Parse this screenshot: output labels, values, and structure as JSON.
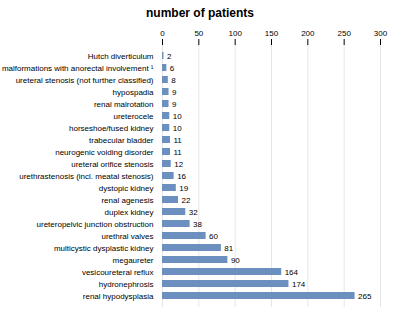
{
  "chart_data": {
    "type": "bar",
    "orientation": "horizontal",
    "title": "number of patients",
    "categories": [
      "Hutch diverticulum",
      "malformations with anorectal involvement ¹",
      "ureteral stenosis (not further classified)",
      "hypospadia",
      "renal malrotation",
      "ureterocele",
      "horseshoe/fused kidney",
      "trabecular bladder",
      "neurogenic voiding disorder",
      "ureteral orifice stenosis",
      "urethrastenosis (incl. meatal stenosis)",
      "dystopic kidney",
      "renal agenesis",
      "duplex kidney",
      "ureteropelvic junction obstruction",
      "urethral valves",
      "multicystic dysplastic kidney",
      "megaureter",
      "vesicoureteral reflux",
      "hydronephrosis",
      "renal hypodysplasia"
    ],
    "values": [
      2,
      6,
      8,
      9,
      9,
      10,
      10,
      11,
      11,
      12,
      16,
      19,
      22,
      32,
      38,
      60,
      81,
      90,
      164,
      174,
      265
    ],
    "color": "#6b8fbf",
    "xlim": [
      0,
      300
    ],
    "xticks": [
      0,
      50,
      100,
      150,
      200,
      250,
      300
    ],
    "grid": true,
    "data_labels": true
  }
}
